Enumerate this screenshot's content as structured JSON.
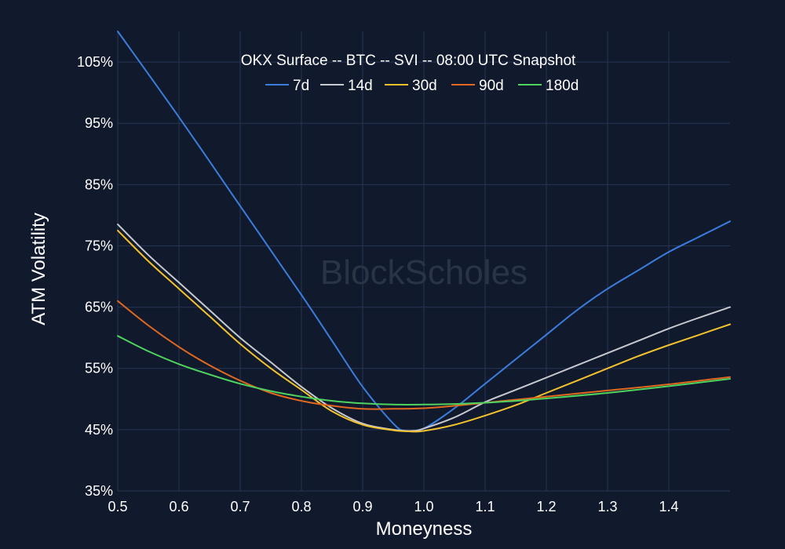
{
  "chart_data": {
    "type": "line",
    "title": "OKX Surface -- BTC -- SVI -- 08:00 UTC Snapshot",
    "xlabel": "Moneyness",
    "ylabel": "ATM Volatility",
    "xlim": [
      0.5,
      1.5
    ],
    "ylim": [
      35,
      110
    ],
    "x_ticks": [
      0.5,
      0.6,
      0.7,
      0.8,
      0.9,
      1.0,
      1.1,
      1.2,
      1.3,
      1.4
    ],
    "x_tick_labels": [
      "0.5",
      "0.6",
      "0.7",
      "0.8",
      "0.9",
      "1.0",
      "1.1",
      "1.2",
      "1.3",
      "1.4"
    ],
    "y_ticks": [
      35,
      45,
      55,
      65,
      75,
      85,
      95,
      105
    ],
    "y_tick_labels": [
      "35%",
      "45%",
      "55%",
      "65%",
      "75%",
      "85%",
      "95%",
      "105%"
    ],
    "grid": true,
    "legend_position": "top-center",
    "watermark": "BlockScholes",
    "series": [
      {
        "name": "7d",
        "color": "#3b7ddd",
        "x": [
          0.5,
          0.6,
          0.7,
          0.8,
          0.85,
          0.9,
          0.95,
          0.97,
          1.0,
          1.05,
          1.1,
          1.15,
          1.2,
          1.25,
          1.3,
          1.35,
          1.4,
          1.45,
          1.5
        ],
        "y": [
          110,
          96,
          81.5,
          67,
          59.5,
          52,
          46,
          44.8,
          45.2,
          48.5,
          52.5,
          56.5,
          60.5,
          64.5,
          68,
          71,
          74,
          76.5,
          79
        ]
      },
      {
        "name": "14d",
        "color": "#c7c9cf",
        "x": [
          0.5,
          0.55,
          0.6,
          0.65,
          0.7,
          0.75,
          0.8,
          0.85,
          0.9,
          0.95,
          0.98,
          1.0,
          1.05,
          1.1,
          1.15,
          1.2,
          1.25,
          1.3,
          1.35,
          1.4,
          1.45,
          1.5
        ],
        "y": [
          78.5,
          73.5,
          69,
          64.5,
          60,
          56,
          52,
          48.5,
          46,
          45,
          44.8,
          45.2,
          47,
          49.5,
          51.5,
          53.5,
          55.5,
          57.5,
          59.5,
          61.5,
          63.3,
          65
        ]
      },
      {
        "name": "30d",
        "color": "#f2c12e",
        "x": [
          0.5,
          0.55,
          0.6,
          0.65,
          0.7,
          0.75,
          0.8,
          0.85,
          0.9,
          0.95,
          0.98,
          1.0,
          1.05,
          1.1,
          1.15,
          1.2,
          1.25,
          1.3,
          1.35,
          1.4,
          1.45,
          1.5
        ],
        "y": [
          77.5,
          72.5,
          68,
          63.5,
          59,
          55,
          51.5,
          48,
          45.8,
          44.9,
          44.7,
          44.8,
          45.8,
          47.3,
          49,
          51,
          53,
          55,
          57,
          58.8,
          60.5,
          62.2
        ]
      },
      {
        "name": "90d",
        "color": "#e0681f",
        "x": [
          0.5,
          0.55,
          0.6,
          0.65,
          0.7,
          0.75,
          0.8,
          0.85,
          0.9,
          0.95,
          1.0,
          1.05,
          1.1,
          1.15,
          1.2,
          1.3,
          1.4,
          1.5
        ],
        "y": [
          66,
          62,
          58.5,
          55.5,
          53,
          51,
          49.7,
          48.9,
          48.4,
          48.4,
          48.5,
          48.9,
          49.4,
          49.9,
          50.4,
          51.4,
          52.4,
          53.6
        ]
      },
      {
        "name": "180d",
        "color": "#4fd35f",
        "x": [
          0.5,
          0.55,
          0.6,
          0.65,
          0.7,
          0.75,
          0.8,
          0.85,
          0.9,
          0.95,
          1.0,
          1.05,
          1.1,
          1.15,
          1.2,
          1.3,
          1.4,
          1.5
        ],
        "y": [
          60.3,
          57.8,
          55.7,
          54,
          52.5,
          51.3,
          50.4,
          49.7,
          49.3,
          49.1,
          49.1,
          49.2,
          49.4,
          49.7,
          50.1,
          51,
          52.1,
          53.3
        ]
      }
    ]
  }
}
